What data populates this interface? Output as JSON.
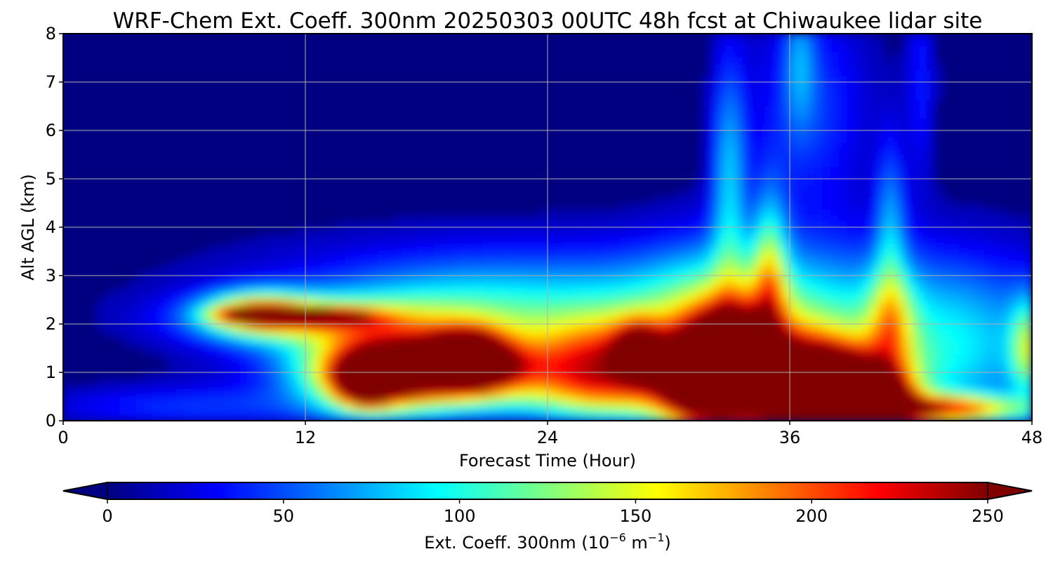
{
  "chart_data": {
    "type": "heatmap",
    "title": "WRF-Chem Ext. Coeff. 300nm  20250303 00UTC 48h fcst at Chiwaukee lidar site",
    "xlabel": "Forecast Time (Hour)",
    "ylabel": "Alt AGL (km)",
    "xlim": [
      0,
      48
    ],
    "ylim": [
      0,
      8
    ],
    "x_ticks": [
      0,
      12,
      24,
      36,
      48
    ],
    "y_ticks": [
      0,
      1,
      2,
      3,
      4,
      5,
      6,
      7,
      8
    ],
    "grid": true,
    "colormap": "jet",
    "colorbar": {
      "label_prefix": "Ext. Coeff. 300nm  (10",
      "exp1": "−6",
      "label_mid": " m",
      "exp2": "−1",
      "label_suffix": ")",
      "range": [
        0,
        250
      ],
      "ticks": [
        0,
        50,
        100,
        150,
        200,
        250
      ],
      "extend": "both",
      "placement": "bottom"
    },
    "features": [
      {
        "x": 10,
        "y": 2.2,
        "value": 240,
        "sx": 1.3,
        "sy": 0.09
      },
      {
        "x": 12.5,
        "y": 2.15,
        "value": 200,
        "sx": 1.8,
        "sy": 0.12
      },
      {
        "x": 9.5,
        "y": 2.25,
        "value": 120,
        "sx": 1.8,
        "sy": 0.3
      },
      {
        "x": 12,
        "y": 2.1,
        "value": 90,
        "sx": 4.0,
        "sy": 0.35
      },
      {
        "x": 15,
        "y": 0.8,
        "value": 215,
        "sx": 0.9,
        "sy": 0.3
      },
      {
        "x": 15.5,
        "y": 0.9,
        "value": 120,
        "sx": 2.2,
        "sy": 0.55
      },
      {
        "x": 20,
        "y": 1.3,
        "value": 250,
        "sx": 1.1,
        "sy": 0.35
      },
      {
        "x": 18.5,
        "y": 1.1,
        "value": 190,
        "sx": 3.0,
        "sy": 0.35
      },
      {
        "x": 19,
        "y": 1.2,
        "value": 110,
        "sx": 5.0,
        "sy": 0.7
      },
      {
        "x": 20,
        "y": 1.8,
        "value": 55,
        "sx": 5.5,
        "sy": 0.9
      },
      {
        "x": 26,
        "y": 1.1,
        "value": 80,
        "sx": 1.8,
        "sy": 0.7
      },
      {
        "x": 28.5,
        "y": 1.45,
        "value": 140,
        "sx": 0.8,
        "sy": 0.4
      },
      {
        "x": 28,
        "y": 1.2,
        "value": 75,
        "sx": 2.0,
        "sy": 0.7
      },
      {
        "x": 31.5,
        "y": 0.9,
        "value": 200,
        "sx": 1.3,
        "sy": 0.6
      },
      {
        "x": 33,
        "y": 1.3,
        "value": 250,
        "sx": 1.2,
        "sy": 0.6
      },
      {
        "x": 32.5,
        "y": 1.3,
        "value": 110,
        "sx": 2.6,
        "sy": 1.3
      },
      {
        "x": 33,
        "y": 5.0,
        "value": 70,
        "sx": 0.6,
        "sy": 1.8
      },
      {
        "x": 35,
        "y": 3.0,
        "value": 90,
        "sx": 0.6,
        "sy": 1.3
      },
      {
        "x": 38,
        "y": 0.6,
        "value": 270,
        "sx": 2.0,
        "sy": 0.45
      },
      {
        "x": 36.8,
        "y": 0.8,
        "value": 170,
        "sx": 2.6,
        "sy": 0.6
      },
      {
        "x": 40.5,
        "y": 0.35,
        "value": 230,
        "sx": 1.0,
        "sy": 0.35
      },
      {
        "x": 43,
        "y": 0.25,
        "value": 175,
        "sx": 3.2,
        "sy": 0.2
      },
      {
        "x": 36,
        "y": 1.0,
        "value": 100,
        "sx": 4.0,
        "sy": 0.9
      },
      {
        "x": 41,
        "y": 4.2,
        "value": 55,
        "sx": 0.5,
        "sy": 1.2
      },
      {
        "x": 41,
        "y": 2.0,
        "value": 80,
        "sx": 0.8,
        "sy": 0.8
      },
      {
        "x": 47.8,
        "y": 1.5,
        "value": 90,
        "sx": 0.6,
        "sy": 0.7
      },
      {
        "x": 45,
        "y": 1.4,
        "value": 55,
        "sx": 3.5,
        "sy": 1.2
      },
      {
        "x": 37,
        "y": 6.5,
        "value": 40,
        "sx": 2.0,
        "sy": 1.6
      },
      {
        "x": 27,
        "y": 0.55,
        "value": 45,
        "sx": 6.0,
        "sy": 0.35
      },
      {
        "x": 6,
        "y": 0.3,
        "value": 35,
        "sx": 5.0,
        "sy": 0.3
      },
      {
        "x": 24,
        "y": 2.6,
        "value": 45,
        "sx": 10.0,
        "sy": 0.8
      },
      {
        "x": 38,
        "y": 2.2,
        "value": 45,
        "sx": 6.0,
        "sy": 1.2
      },
      {
        "x": 36.5,
        "y": 7.5,
        "value": 40,
        "sx": 0.5,
        "sy": 1.0
      },
      {
        "x": 42.5,
        "y": 7.0,
        "value": 30,
        "sx": 0.5,
        "sy": 1.5
      }
    ]
  }
}
